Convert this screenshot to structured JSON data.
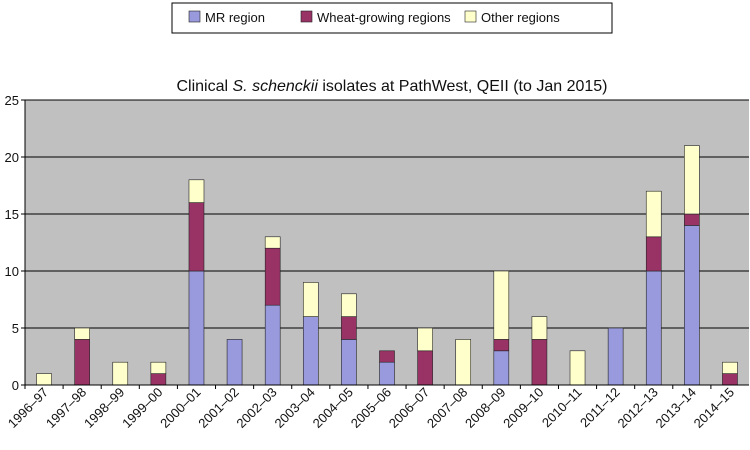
{
  "chart_data": {
    "type": "bar",
    "stacked": true,
    "title_parts": [
      {
        "text": "Clinical ",
        "italic": false
      },
      {
        "text": "S. schenckii",
        "italic": true
      },
      {
        "text": " isolates at PathWest, QEII (to Jan 2015)",
        "italic": false
      }
    ],
    "categories": [
      "1996–97",
      "1997–98",
      "1998–99",
      "1999–00",
      "2000–01",
      "2001–02",
      "2002–03",
      "2003–04",
      "2004–05",
      "2005–06",
      "2006–07",
      "2007–08",
      "2008–09",
      "2009–10",
      "2010–11",
      "2011–12",
      "2012–13",
      "2013–14",
      "2014–15"
    ],
    "series": [
      {
        "name": "MR region",
        "color": "#9999dd",
        "values": [
          0,
          0,
          0,
          0,
          10,
          4,
          7,
          6,
          4,
          2,
          0,
          0,
          3,
          0,
          0,
          5,
          10,
          14,
          0
        ]
      },
      {
        "name": "Wheat-growing regions",
        "color": "#993366",
        "values": [
          0,
          4,
          0,
          1,
          6,
          0,
          5,
          0,
          2,
          1,
          3,
          0,
          1,
          4,
          0,
          0,
          3,
          1,
          1
        ]
      },
      {
        "name": "Other regions",
        "color": "#ffffcc",
        "values": [
          1,
          1,
          2,
          1,
          2,
          0,
          1,
          3,
          2,
          0,
          2,
          4,
          6,
          2,
          3,
          0,
          4,
          6,
          1
        ]
      }
    ],
    "ylim": [
      0,
      25
    ],
    "yticks": [
      0,
      5,
      10,
      15,
      20,
      25
    ],
    "grid": true,
    "plot_background": "#c0c0c0",
    "legend_position": "top"
  }
}
